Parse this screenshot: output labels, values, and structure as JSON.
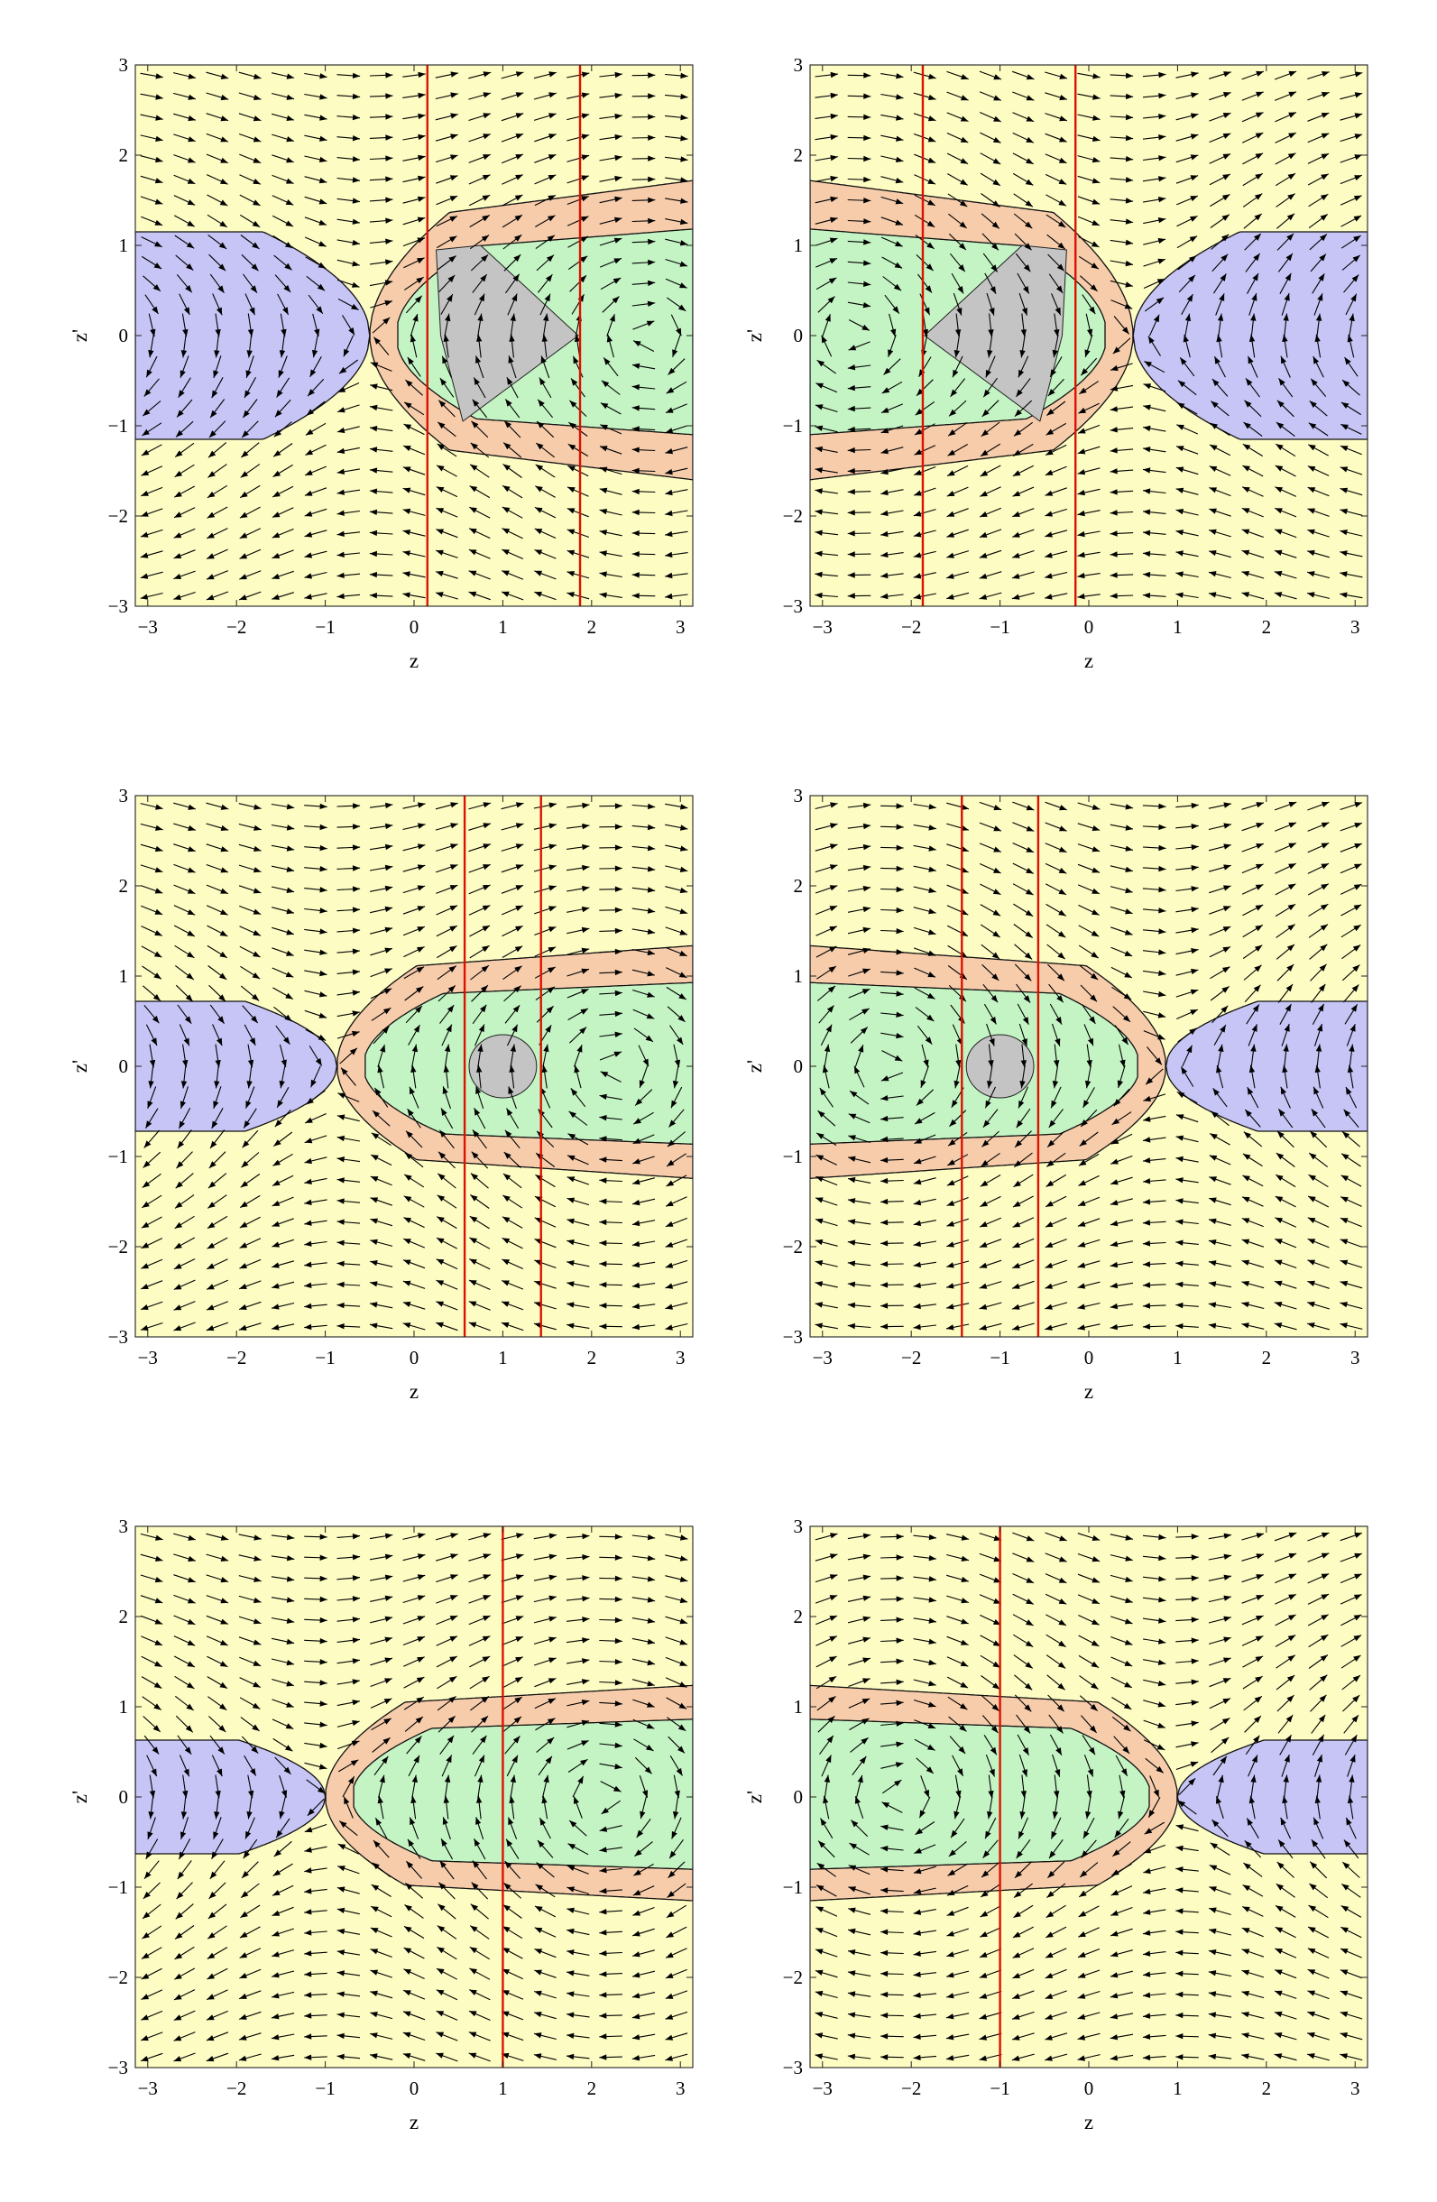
{
  "chart_data": [
    {
      "type": "streamplot",
      "xlabel": "z",
      "ylabel": "z'",
      "xlim": [
        -3.14,
        3.14
      ],
      "ylim": [
        -3.0,
        3.0
      ],
      "xticks": [
        "−3",
        "−2",
        "−1",
        "0",
        "1",
        "2",
        "3"
      ],
      "yticks": [
        "−3",
        "−2",
        "−1",
        "0",
        "1",
        "2",
        "3"
      ],
      "params": {
        "m": 1.0,
        "xs": -0.5,
        "yb": 1.15,
        "lw": 0.55,
        "lh": 1.25,
        "shift": 0.45,
        "shiftFac": 1.0,
        "flip": 1
      },
      "red_lines": [
        0.15,
        1.87
      ],
      "core": {
        "type": "triangle",
        "points": [
          [
            0.25,
            0.95
          ],
          [
            0.3,
            0.0
          ],
          [
            0.55,
            -0.95
          ],
          [
            1.85,
            0.0
          ],
          [
            0.75,
            1.0
          ]
        ]
      },
      "colors": {
        "yellow": "#fdfcc3",
        "orange": "#f7ccab",
        "green": "#c4f4c4",
        "blue": "#c7c5f6",
        "gray": "#c4c4c4",
        "red": "#dd1100"
      }
    },
    {
      "type": "streamplot",
      "xlabel": "z",
      "ylabel": "z'",
      "xlim": [
        -3.14,
        3.14
      ],
      "ylim": [
        -3.0,
        3.0
      ],
      "xticks": [
        "−3",
        "−2",
        "−1",
        "0",
        "1",
        "2",
        "3"
      ],
      "yticks": [
        "−3",
        "−2",
        "−1",
        "0",
        "1",
        "2",
        "3"
      ],
      "params": {
        "m": 1.0,
        "xs": 0.5,
        "yb": 1.15,
        "lw": 0.55,
        "lh": 1.25,
        "shift": 0.45,
        "shiftFac": 1.0,
        "flip": -1
      },
      "red_lines": [
        -1.87,
        -0.15
      ],
      "core": {
        "type": "triangle",
        "points": [
          [
            -0.25,
            0.95
          ],
          [
            -0.3,
            0.0
          ],
          [
            -0.55,
            -0.95
          ],
          [
            -1.85,
            0.0
          ],
          [
            -0.75,
            1.0
          ]
        ]
      },
      "colors": {
        "yellow": "#fdfcc3",
        "orange": "#f7ccab",
        "green": "#c4f4c4",
        "blue": "#c7c5f6",
        "gray": "#c4c4c4",
        "red": "#dd1100"
      }
    },
    {
      "type": "streamplot",
      "xlabel": "z",
      "ylabel": "z'",
      "xlim": [
        -3.14,
        3.14
      ],
      "ylim": [
        -3.0,
        3.0
      ],
      "xticks": [
        "−3",
        "−2",
        "−1",
        "0",
        "1",
        "2",
        "3"
      ],
      "yticks": [
        "−3",
        "−2",
        "−1",
        "0",
        "1",
        "2",
        "3"
      ],
      "params": {
        "m": 1.0,
        "xs": -0.87,
        "yb": 0.72,
        "lw": 0.45,
        "lh": 1.05,
        "shift": 0.25,
        "shiftFac": 1.0,
        "flip": 1
      },
      "red_lines": [
        0.57,
        1.43
      ],
      "core": {
        "type": "oval",
        "cx": 1.0,
        "cy": 0.0,
        "rx": 0.38,
        "ry": 0.35
      },
      "colors": {
        "yellow": "#fdfcc3",
        "orange": "#f7ccab",
        "green": "#c4f4c4",
        "blue": "#c7c5f6",
        "gray": "#c4c4c4",
        "red": "#dd1100"
      }
    },
    {
      "type": "streamplot",
      "xlabel": "z",
      "ylabel": "z'",
      "xlim": [
        -3.14,
        3.14
      ],
      "ylim": [
        -3.0,
        3.0
      ],
      "xticks": [
        "−3",
        "−2",
        "−1",
        "0",
        "1",
        "2",
        "3"
      ],
      "yticks": [
        "−3",
        "−2",
        "−1",
        "0",
        "1",
        "2",
        "3"
      ],
      "params": {
        "m": 1.0,
        "xs": 0.87,
        "yb": 0.72,
        "lw": 0.45,
        "lh": 1.05,
        "shift": 0.25,
        "shiftFac": 1.0,
        "flip": -1
      },
      "red_lines": [
        -1.43,
        -0.57
      ],
      "core": {
        "type": "oval",
        "cx": -1.0,
        "cy": 0.0,
        "rx": 0.38,
        "ry": 0.35
      },
      "colors": {
        "yellow": "#fdfcc3",
        "orange": "#f7ccab",
        "green": "#c4f4c4",
        "blue": "#c7c5f6",
        "gray": "#c4c4c4",
        "red": "#dd1100"
      }
    },
    {
      "type": "streamplot",
      "xlabel": "z",
      "ylabel": "z'",
      "xlim": [
        -3.14,
        3.14
      ],
      "ylim": [
        -3.0,
        3.0
      ],
      "xticks": [
        "−3",
        "−2",
        "−1",
        "0",
        "1",
        "2",
        "3"
      ],
      "yticks": [
        "−3",
        "−2",
        "−1",
        "0",
        "1",
        "2",
        "3"
      ],
      "params": {
        "m": 1.0,
        "xs": -1.0,
        "yb": 0.63,
        "lw": 0.4,
        "lh": 1.0,
        "shift": 0.2,
        "shiftFac": 1.0,
        "flip": 1
      },
      "red_lines": [
        1.0
      ],
      "core": null,
      "colors": {
        "yellow": "#fdfcc3",
        "orange": "#f7ccab",
        "green": "#c4f4c4",
        "blue": "#c7c5f6",
        "gray": "#c4c4c4",
        "red": "#dd1100"
      }
    },
    {
      "type": "streamplot",
      "xlabel": "z",
      "ylabel": "z'",
      "xlim": [
        -3.14,
        3.14
      ],
      "ylim": [
        -3.0,
        3.0
      ],
      "xticks": [
        "−3",
        "−2",
        "−1",
        "0",
        "1",
        "2",
        "3"
      ],
      "yticks": [
        "−3",
        "−2",
        "−1",
        "0",
        "1",
        "2",
        "3"
      ],
      "params": {
        "m": 1.0,
        "xs": 1.0,
        "yb": 0.63,
        "lw": 0.4,
        "lh": 1.0,
        "shift": 0.2,
        "shiftFac": 1.0,
        "flip": -1
      },
      "red_lines": [
        -1.0
      ],
      "core": null,
      "colors": {
        "yellow": "#fdfcc3",
        "orange": "#f7ccab",
        "green": "#c4f4c4",
        "blue": "#c7c5f6",
        "gray": "#c4c4c4",
        "red": "#dd1100"
      }
    }
  ]
}
